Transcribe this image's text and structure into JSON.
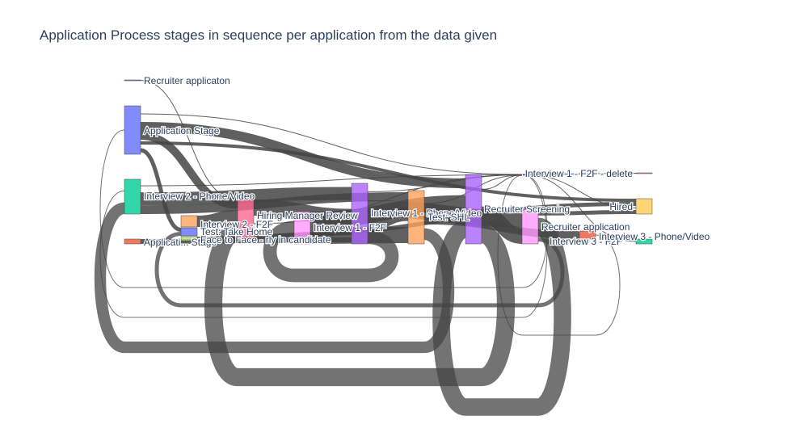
{
  "title": "Application Process stages in sequence per application from the data given",
  "chart_data": {
    "type": "sankey",
    "title": "Application Process stages in sequence per application from the data given",
    "nodes": [
      {
        "id": "recruiter_applicaton",
        "label": "Recruiter applicaton",
        "color": "#636efa",
        "value": 1
      },
      {
        "id": "application_stage",
        "label": "Application Stage",
        "color": "#636efa",
        "value": 60
      },
      {
        "id": "interview2_phone",
        "label": "Interview 2 - Phone/Video",
        "color": "#00cc96",
        "value": 40
      },
      {
        "id": "application_low",
        "label": "Applicati... Stage",
        "color": "#ef553b",
        "value": 6
      },
      {
        "id": "interview_f2f_small",
        "label": "Interview 2 - F2F",
        "color": "#ffa15a",
        "value": 14
      },
      {
        "id": "test_take_home",
        "label": "Test: Take Home",
        "color": "#636efa",
        "value": 10
      },
      {
        "id": "face_to_face",
        "label": "Face to Face - rly in candidate",
        "color": "#b6e880",
        "value": 4
      },
      {
        "id": "hiring_manager_review",
        "label": "Hiring Manager Review",
        "color": "#ff6692",
        "value": 50
      },
      {
        "id": "interview1_f2f",
        "label": "Interview 1 - F2F",
        "color": "#ab63fa",
        "value": 70
      },
      {
        "id": "col5_violet",
        "label": "",
        "color": "#ff97ff",
        "value": 30
      },
      {
        "id": "interview1_phone",
        "label": "Interview 1 - Phone/Video",
        "color": "#ab63fa",
        "value": 70
      },
      {
        "id": "test_shl",
        "label": "Test: SHL",
        "color": "#ffa15a",
        "value": 60
      },
      {
        "id": "recruiter_screening",
        "label": "Recruiter Screening",
        "color": "#ff6692",
        "value": 90
      },
      {
        "id": "interview1_f2f_delete",
        "label": "Interview 1 - F2F - delete",
        "color": "#ff6692",
        "value": 1
      },
      {
        "id": "recruiter_application",
        "label": "Recruiter application",
        "color": "#ff97ff",
        "value": 45
      },
      {
        "id": "interview3_f2f",
        "label": "Interview 3 - F2F",
        "color": "#ef553b",
        "value": 6
      },
      {
        "id": "hired",
        "label": "Hired",
        "color": "#fecb52",
        "value": 20
      },
      {
        "id": "interview3_phone",
        "label": "Interview 3 - Phone/Video",
        "color": "#00cc96",
        "value": 5
      }
    ],
    "links": [
      {
        "source": "recruiter_applicaton",
        "target": "hiring_manager_review",
        "value": 1
      },
      {
        "source": "application_stage",
        "target": "recruiter_screening",
        "value": 20
      },
      {
        "source": "application_stage",
        "target": "interview1_phone",
        "value": 12
      },
      {
        "source": "application_stage",
        "target": "hiring_manager_review",
        "value": 10
      },
      {
        "source": "application_stage",
        "target": "hired",
        "value": 8
      },
      {
        "source": "application_stage",
        "target": "test_take_home",
        "value": 10
      },
      {
        "source": "interview2_phone",
        "target": "recruiter_screening",
        "value": 15
      },
      {
        "source": "interview2_phone",
        "target": "interview1_f2f",
        "value": 15
      },
      {
        "source": "interview2_phone",
        "target": "test_shl",
        "value": 10
      },
      {
        "source": "hiring_manager_review",
        "target": "interview1_f2f",
        "value": 20
      },
      {
        "source": "hiring_manager_review",
        "target": "recruiter_screening",
        "value": 20
      },
      {
        "source": "hiring_manager_review",
        "target": "hired",
        "value": 10
      },
      {
        "source": "interview1_f2f",
        "target": "recruiter_screening",
        "value": 25
      },
      {
        "source": "interview1_f2f",
        "target": "recruiter_application",
        "value": 25
      },
      {
        "source": "interview1_f2f",
        "target": "test_shl",
        "value": 20
      },
      {
        "source": "col5_violet",
        "target": "interview1_phone",
        "value": 15
      },
      {
        "source": "col5_violet",
        "target": "test_shl",
        "value": 15
      },
      {
        "source": "interview1_phone",
        "target": "recruiter_screening",
        "value": 30
      },
      {
        "source": "interview1_phone",
        "target": "recruiter_application",
        "value": 20
      },
      {
        "source": "test_shl",
        "target": "recruiter_screening",
        "value": 20
      },
      {
        "source": "test_shl",
        "target": "interview3_f2f",
        "value": 6
      },
      {
        "source": "recruiter_screening",
        "target": "interview1_f2f_delete",
        "value": 1
      },
      {
        "source": "recruiter_screening",
        "target": "hired",
        "value": 10
      },
      {
        "source": "recruiter_screening",
        "target": "interview3_phone",
        "value": 5
      },
      {
        "source": "recruiter_application",
        "target": "hired",
        "value": 10
      },
      {
        "source": "interview_f2f_small",
        "target": "hiring_manager_review",
        "value": 14
      },
      {
        "source": "face_to_face",
        "target": "interview1_f2f",
        "value": 4
      },
      {
        "source": "application_low",
        "target": "interview1_f2f",
        "value": 6
      },
      {
        "source": "recruiter_screening",
        "target": "application_stage",
        "value": 30
      },
      {
        "source": "recruiter_screening",
        "target": "interview2_phone",
        "value": 30
      },
      {
        "source": "test_shl",
        "target": "interview2_phone",
        "value": 15
      },
      {
        "source": "interview1_phone",
        "target": "hiring_manager_review",
        "value": 20
      },
      {
        "source": "recruiter_application",
        "target": "interview1_phone",
        "value": 20
      },
      {
        "source": "interview1_f2f",
        "target": "col5_violet",
        "value": 20
      },
      {
        "source": "recruiter_application",
        "target": "test_take_home",
        "value": 10
      },
      {
        "source": "interview3_f2f",
        "target": "recruiter_screening",
        "value": 5
      }
    ],
    "link_color": "#444444"
  }
}
